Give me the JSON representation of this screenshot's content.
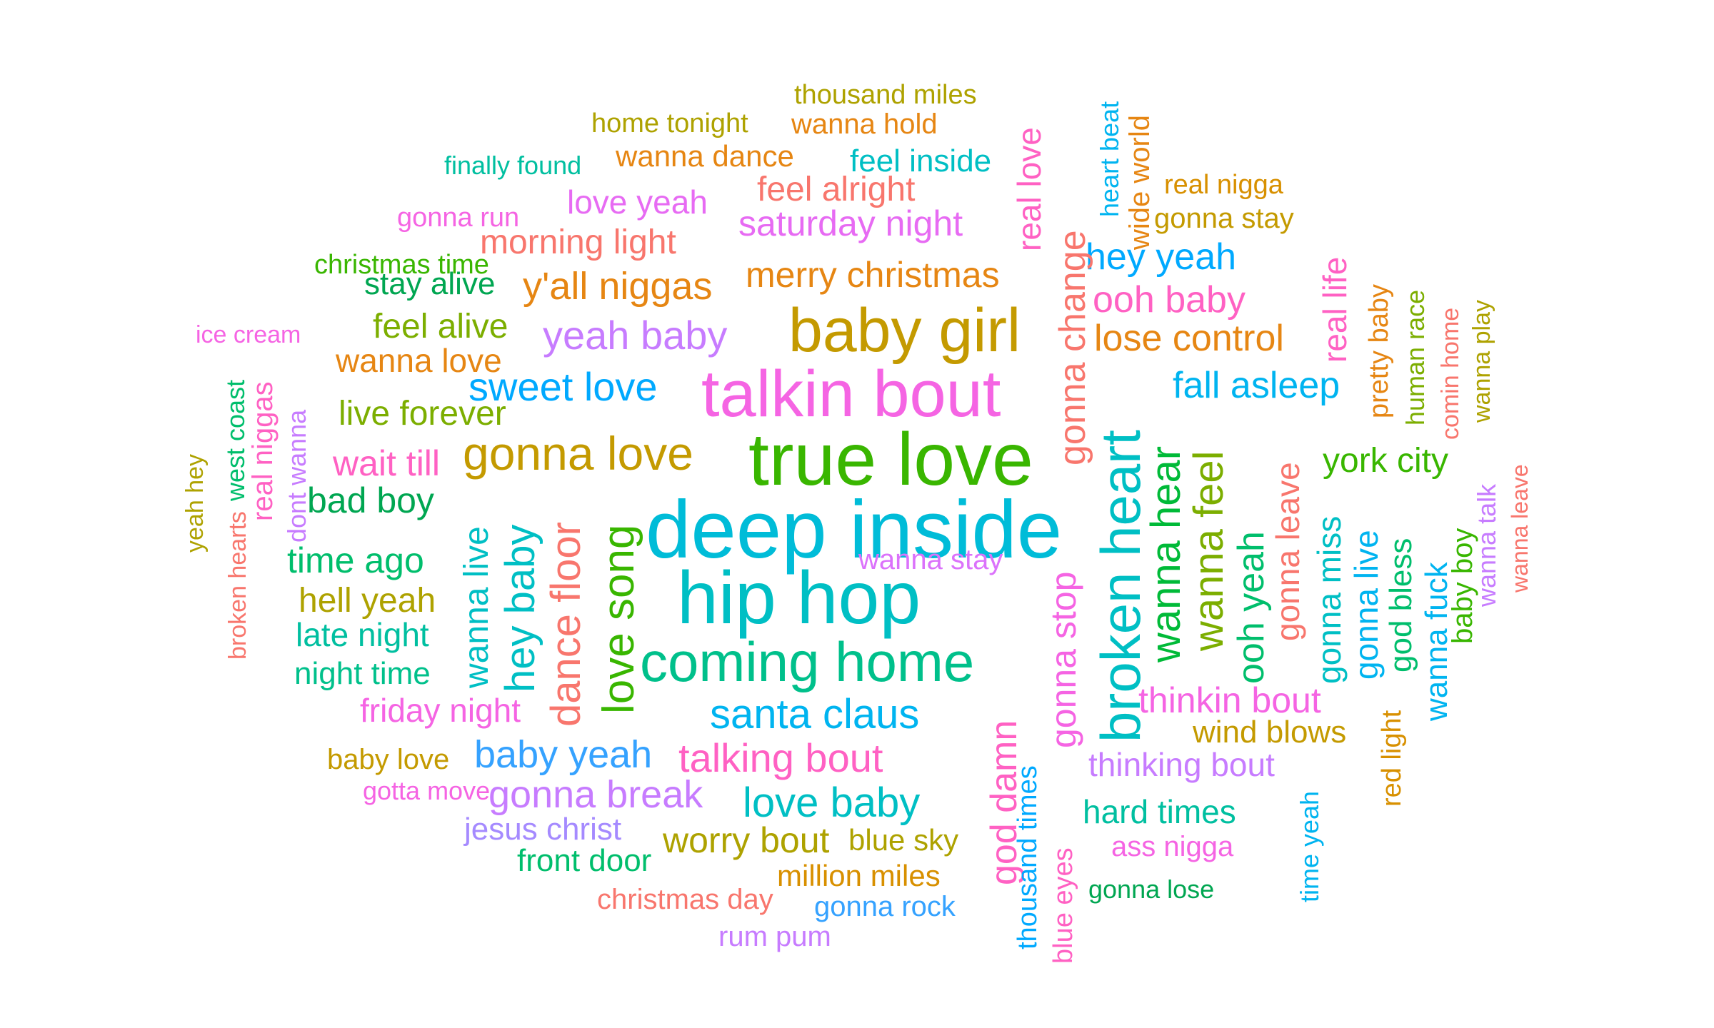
{
  "words": [
    {
      "text": "deep inside",
      "color": "#00BCD8"
    },
    {
      "text": "true love",
      "color": "#39B600"
    },
    {
      "text": "hip hop",
      "color": "#00BFC4"
    },
    {
      "text": "talkin bout",
      "color": "#F564E3"
    },
    {
      "text": "baby girl",
      "color": "#C49A00"
    },
    {
      "text": "coming home",
      "color": "#00C08B"
    },
    {
      "text": "broken heart",
      "color": "#00BFC4"
    },
    {
      "text": "gonna love",
      "color": "#C49A00"
    },
    {
      "text": "santa claus",
      "color": "#00B4F0"
    },
    {
      "text": "sweet love",
      "color": "#00A9FF"
    },
    {
      "text": "yeah baby",
      "color": "#C77CFF"
    },
    {
      "text": "y'all niggas",
      "color": "#E68613"
    },
    {
      "text": "merry christmas",
      "color": "#E68613"
    },
    {
      "text": "love song",
      "color": "#39B600"
    },
    {
      "text": "dance floor",
      "color": "#F8766D"
    },
    {
      "text": "hey baby",
      "color": "#00BFC4"
    },
    {
      "text": "wanna hear",
      "color": "#00BA38"
    },
    {
      "text": "wanna feel",
      "color": "#7CAE00"
    },
    {
      "text": "gonna change",
      "color": "#F8766D"
    },
    {
      "text": "lose control",
      "color": "#E68613"
    },
    {
      "text": "fall asleep",
      "color": "#00B4F0"
    },
    {
      "text": "ooh baby",
      "color": "#FF61C3"
    },
    {
      "text": "hey yeah",
      "color": "#00A9FF"
    },
    {
      "text": "talking bout",
      "color": "#FF61C3"
    },
    {
      "text": "love baby",
      "color": "#00BFC4"
    },
    {
      "text": "baby yeah",
      "color": "#35A2FF"
    },
    {
      "text": "gonna break",
      "color": "#C77CFF"
    },
    {
      "text": "worry bout",
      "color": "#AEA200"
    },
    {
      "text": "thinkin bout",
      "color": "#F564E3"
    },
    {
      "text": "york city",
      "color": "#39B600"
    },
    {
      "text": "ooh yeah",
      "color": "#00BE6C"
    },
    {
      "text": "gonna stop",
      "color": "#F564E3"
    },
    {
      "text": "god damn",
      "color": "#FF61C3"
    },
    {
      "text": "saturday night",
      "color": "#E76BF3"
    },
    {
      "text": "morning light",
      "color": "#F8766D"
    },
    {
      "text": "feel alright",
      "color": "#F8766D"
    },
    {
      "text": "love yeah",
      "color": "#E76BF3"
    },
    {
      "text": "feel alive",
      "color": "#7CAE00"
    },
    {
      "text": "wanna love",
      "color": "#E68613"
    },
    {
      "text": "live forever",
      "color": "#7CAE00"
    },
    {
      "text": "wait till",
      "color": "#FF61C3"
    },
    {
      "text": "bad boy",
      "color": "#00A651"
    },
    {
      "text": "time ago",
      "color": "#00BE6C"
    },
    {
      "text": "hell yeah",
      "color": "#AEA200"
    },
    {
      "text": "late night",
      "color": "#00BFA0"
    },
    {
      "text": "night time",
      "color": "#00C08B"
    },
    {
      "text": "friday night",
      "color": "#F564E3"
    },
    {
      "text": "wanna live",
      "color": "#00BFC4"
    },
    {
      "text": "hard times",
      "color": "#00BFA0"
    },
    {
      "text": "thinking bout",
      "color": "#C77CFF"
    },
    {
      "text": "wind blows",
      "color": "#C49A00"
    },
    {
      "text": "gonna leave",
      "color": "#F8766D"
    },
    {
      "text": "gonna miss",
      "color": "#00BFC4"
    },
    {
      "text": "gonna live",
      "color": "#00B4F0"
    },
    {
      "text": "god bless",
      "color": "#00BE6C"
    },
    {
      "text": "wanna fuck",
      "color": "#00B4F0"
    },
    {
      "text": "baby boy",
      "color": "#39B600"
    },
    {
      "text": "real life",
      "color": "#FF61C3"
    },
    {
      "text": "real love",
      "color": "#FF61C3"
    },
    {
      "text": "wanna stay",
      "color": "#DB72FB"
    },
    {
      "text": "stay alive",
      "color": "#00A651"
    },
    {
      "text": "feel inside",
      "color": "#00BFC4"
    },
    {
      "text": "wanna dance",
      "color": "#E68613"
    },
    {
      "text": "wanna hold",
      "color": "#E68613"
    },
    {
      "text": "blue sky",
      "color": "#AEA200"
    },
    {
      "text": "million miles",
      "color": "#D89000"
    },
    {
      "text": "front door",
      "color": "#00BE6C"
    },
    {
      "text": "jesus christ",
      "color": "#A58AFF"
    },
    {
      "text": "baby love",
      "color": "#C49A00"
    },
    {
      "text": "christmas day",
      "color": "#F8766D"
    },
    {
      "text": "gonna rock",
      "color": "#35A2FF"
    },
    {
      "text": "rum pum",
      "color": "#C77CFF"
    },
    {
      "text": "ass nigga",
      "color": "#F564E3"
    },
    {
      "text": "gonna lose",
      "color": "#00A651"
    },
    {
      "text": "thousand times",
      "color": "#00A9FF"
    },
    {
      "text": "blue eyes",
      "color": "#FF61C3"
    },
    {
      "text": "time yeah",
      "color": "#00B4F0"
    },
    {
      "text": "red light",
      "color": "#D89000"
    },
    {
      "text": "wanna talk",
      "color": "#C77CFF"
    },
    {
      "text": "wanna leave",
      "color": "#F8766D"
    },
    {
      "text": "pretty baby",
      "color": "#E68613"
    },
    {
      "text": "human race",
      "color": "#7CAE00"
    },
    {
      "text": "comin home",
      "color": "#F8766D"
    },
    {
      "text": "wanna play",
      "color": "#AEA200"
    },
    {
      "text": "real nigga",
      "color": "#D89000"
    },
    {
      "text": "gonna stay",
      "color": "#C49A00"
    },
    {
      "text": "heart beat",
      "color": "#00B4F0"
    },
    {
      "text": "wide world",
      "color": "#E68613"
    },
    {
      "text": "thousand miles",
      "color": "#AEA200"
    },
    {
      "text": "home tonight",
      "color": "#AEA200"
    },
    {
      "text": "finally found",
      "color": "#00BFA0"
    },
    {
      "text": "gonna run",
      "color": "#F564E3"
    },
    {
      "text": "christmas time",
      "color": "#39B600"
    },
    {
      "text": "ice cream",
      "color": "#F564E3"
    },
    {
      "text": "gotta move",
      "color": "#F564E3"
    },
    {
      "text": "yeah hey",
      "color": "#AEA200"
    },
    {
      "text": "west coast",
      "color": "#00BE6C"
    },
    {
      "text": "real niggas",
      "color": "#FF61C3"
    },
    {
      "text": "dont wanna",
      "color": "#C77CFF"
    },
    {
      "text": "broken hearts",
      "color": "#F8766D"
    }
  ]
}
